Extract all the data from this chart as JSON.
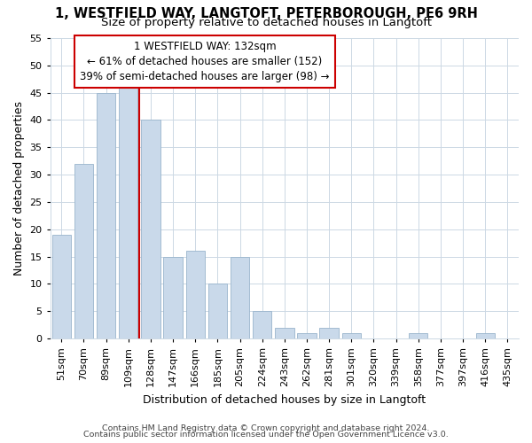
{
  "title1": "1, WESTFIELD WAY, LANGTOFT, PETERBOROUGH, PE6 9RH",
  "title2": "Size of property relative to detached houses in Langtoft",
  "xlabel": "Distribution of detached houses by size in Langtoft",
  "ylabel": "Number of detached properties",
  "bar_labels": [
    "51sqm",
    "70sqm",
    "89sqm",
    "109sqm",
    "128sqm",
    "147sqm",
    "166sqm",
    "185sqm",
    "205sqm",
    "224sqm",
    "243sqm",
    "262sqm",
    "281sqm",
    "301sqm",
    "320sqm",
    "339sqm",
    "358sqm",
    "377sqm",
    "397sqm",
    "416sqm",
    "435sqm"
  ],
  "bar_values": [
    19,
    32,
    45,
    46,
    40,
    15,
    16,
    10,
    15,
    5,
    2,
    1,
    2,
    1,
    0,
    0,
    1,
    0,
    0,
    1,
    0
  ],
  "bar_color": "#c9d9ea",
  "bar_edge_color": "#9ab5cc",
  "vline_x": 4.0,
  "annotation_line1": "1 WESTFIELD WAY: 132sqm",
  "annotation_line2": "← 61% of detached houses are smaller (152)",
  "annotation_line3": "39% of semi-detached houses are larger (98) →",
  "annotation_box_color": "#ffffff",
  "annotation_box_edge": "#cc0000",
  "vline_color": "#cc0000",
  "ylim": [
    0,
    55
  ],
  "yticks": [
    0,
    5,
    10,
    15,
    20,
    25,
    30,
    35,
    40,
    45,
    50,
    55
  ],
  "grid_color": "#ccd8e4",
  "footer1": "Contains HM Land Registry data © Crown copyright and database right 2024.",
  "footer2": "Contains public sector information licensed under the Open Government Licence v3.0.",
  "bg_color": "#ffffff",
  "title1_fontsize": 10.5,
  "title2_fontsize": 9.5,
  "ylabel_fontsize": 9,
  "xlabel_fontsize": 9,
  "tick_fontsize": 8,
  "annot_fontsize": 8.5,
  "footer_fontsize": 6.8
}
